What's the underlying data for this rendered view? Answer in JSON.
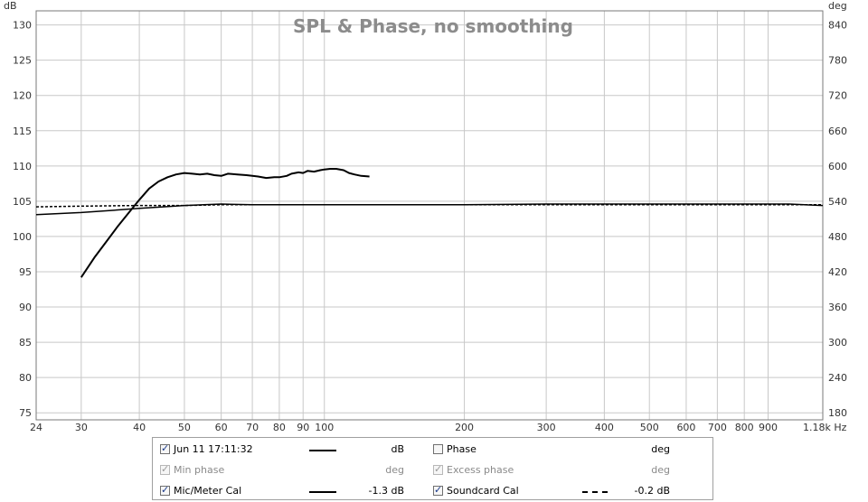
{
  "chart_data": {
    "type": "line",
    "title": "SPL & Phase, no smoothing",
    "y_unit_left": "dB",
    "y_unit_right": "deg",
    "x_scale": "log",
    "xlim": [
      24,
      1180
    ],
    "ylim_left": [
      74,
      132
    ],
    "ylim_right": [
      168,
      864
    ],
    "x_ticks": [
      24,
      30,
      40,
      50,
      60,
      70,
      80,
      90,
      100,
      200,
      300,
      400,
      500,
      600,
      700,
      800,
      900,
      1180
    ],
    "x_tick_labels": [
      "24",
      "30",
      "40",
      "50",
      "60",
      "70",
      "80",
      "90",
      "100",
      "200",
      "300",
      "400",
      "500",
      "600",
      "700",
      "800",
      "900",
      "1.18k Hz"
    ],
    "y_ticks_left": [
      75,
      80,
      85,
      90,
      95,
      100,
      105,
      110,
      115,
      120,
      125,
      130
    ],
    "y_ticks_right": [
      180,
      240,
      300,
      360,
      420,
      480,
      540,
      600,
      660,
      720,
      780,
      840
    ],
    "grid": true,
    "series": [
      {
        "name": "Jun 11 17:11:32",
        "style": "solid",
        "x": [
          30,
          32,
          34,
          36,
          38,
          40,
          42,
          44,
          46,
          48,
          50,
          52,
          54,
          56,
          58,
          60,
          62,
          65,
          68,
          70,
          72,
          75,
          78,
          80,
          83,
          85,
          88,
          90,
          92,
          95,
          98,
          100,
          103,
          106,
          110,
          113,
          116,
          120,
          125
        ],
        "y": [
          94.2,
          97,
          99.3,
          101.5,
          103.4,
          105.2,
          106.8,
          107.8,
          108.4,
          108.8,
          109.0,
          108.9,
          108.8,
          108.9,
          108.7,
          108.6,
          108.9,
          108.8,
          108.7,
          108.6,
          108.5,
          108.3,
          108.4,
          108.4,
          108.6,
          108.9,
          109.1,
          109.0,
          109.3,
          109.2,
          109.4,
          109.5,
          109.6,
          109.6,
          109.4,
          109.0,
          108.8,
          108.6,
          108.5
        ]
      },
      {
        "name": "Mic/Meter Cal",
        "style": "solid",
        "x": [
          24,
          30,
          35,
          40,
          45,
          50,
          55,
          60,
          70,
          80,
          100,
          150,
          200,
          300,
          500,
          800,
          1000,
          1180
        ],
        "y": [
          103.1,
          103.4,
          103.7,
          104.0,
          104.2,
          104.4,
          104.5,
          104.6,
          104.5,
          104.5,
          104.5,
          104.5,
          104.5,
          104.6,
          104.6,
          104.6,
          104.6,
          104.4
        ]
      },
      {
        "name": "Soundcard Cal",
        "style": "dotted",
        "x": [
          24,
          30,
          40,
          50,
          60,
          80,
          100,
          200,
          400,
          800,
          1180
        ],
        "y": [
          104.2,
          104.3,
          104.4,
          104.4,
          104.5,
          104.5,
          104.5,
          104.5,
          104.5,
          104.5,
          104.5
        ]
      }
    ]
  },
  "legend": {
    "rows": [
      {
        "left": {
          "label": "Jun 11 17:11:32",
          "checked": true,
          "enabled": true,
          "swatch": "solid",
          "value": "",
          "unit": "dB"
        },
        "right": {
          "label": "Phase",
          "checked": false,
          "enabled": true,
          "swatch": "none",
          "value": "",
          "unit": "deg"
        }
      },
      {
        "left": {
          "label": "Min phase",
          "checked": true,
          "enabled": false,
          "swatch": "none",
          "value": "",
          "unit": "deg"
        },
        "right": {
          "label": "Excess phase",
          "checked": true,
          "enabled": false,
          "swatch": "none",
          "value": "",
          "unit": "deg"
        }
      },
      {
        "left": {
          "label": "Mic/Meter Cal",
          "checked": true,
          "enabled": true,
          "swatch": "solid",
          "value": "-1.3 dB",
          "unit": ""
        },
        "right": {
          "label": "Soundcard Cal",
          "checked": true,
          "enabled": true,
          "swatch": "dotted",
          "value": "-0.2 dB",
          "unit": ""
        }
      }
    ]
  }
}
